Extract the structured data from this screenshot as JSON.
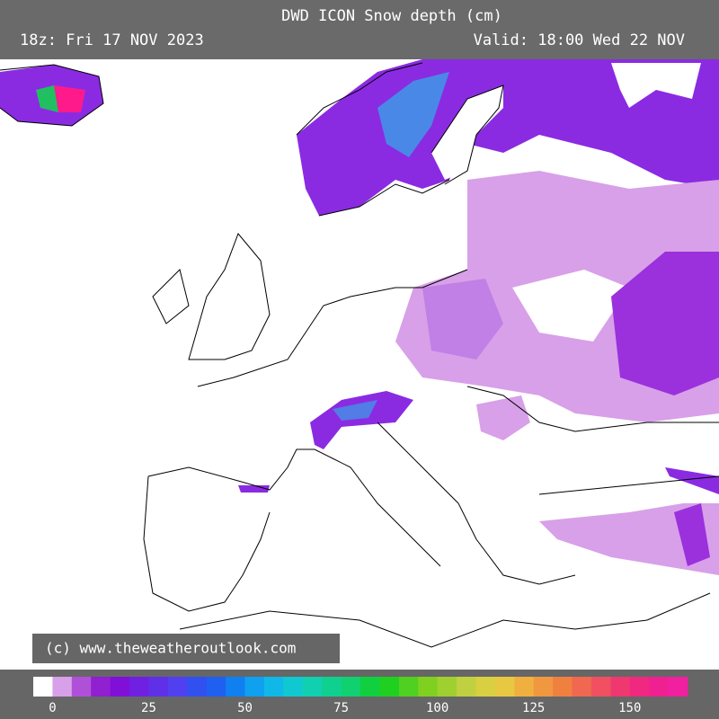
{
  "header": {
    "title": "DWD ICON Snow depth (cm)",
    "run": "18z: Fri 17 NOV 2023",
    "valid": "Valid: 18:00 Wed 22 NOV"
  },
  "credit": "(c) www.theweatheroutlook.com",
  "colorbar": {
    "colors": [
      "#ffffff",
      "#d8a0e8",
      "#b050d8",
      "#9020d0",
      "#8010d8",
      "#7020e0",
      "#6030e8",
      "#5040f0",
      "#3050f0",
      "#2060f0",
      "#1080f0",
      "#10a0f0",
      "#10b8e8",
      "#10c8d0",
      "#10d0b0",
      "#10d090",
      "#10d070",
      "#10d040",
      "#20d020",
      "#50d020",
      "#80d020",
      "#a0d030",
      "#c0d040",
      "#d8d040",
      "#e8c840",
      "#f0b040",
      "#f09840",
      "#f08040",
      "#f06850",
      "#f05060",
      "#f03870",
      "#f02880",
      "#f02090",
      "#f020a0"
    ],
    "ticks": [
      0,
      25,
      50,
      75,
      100,
      125,
      150
    ]
  }
}
